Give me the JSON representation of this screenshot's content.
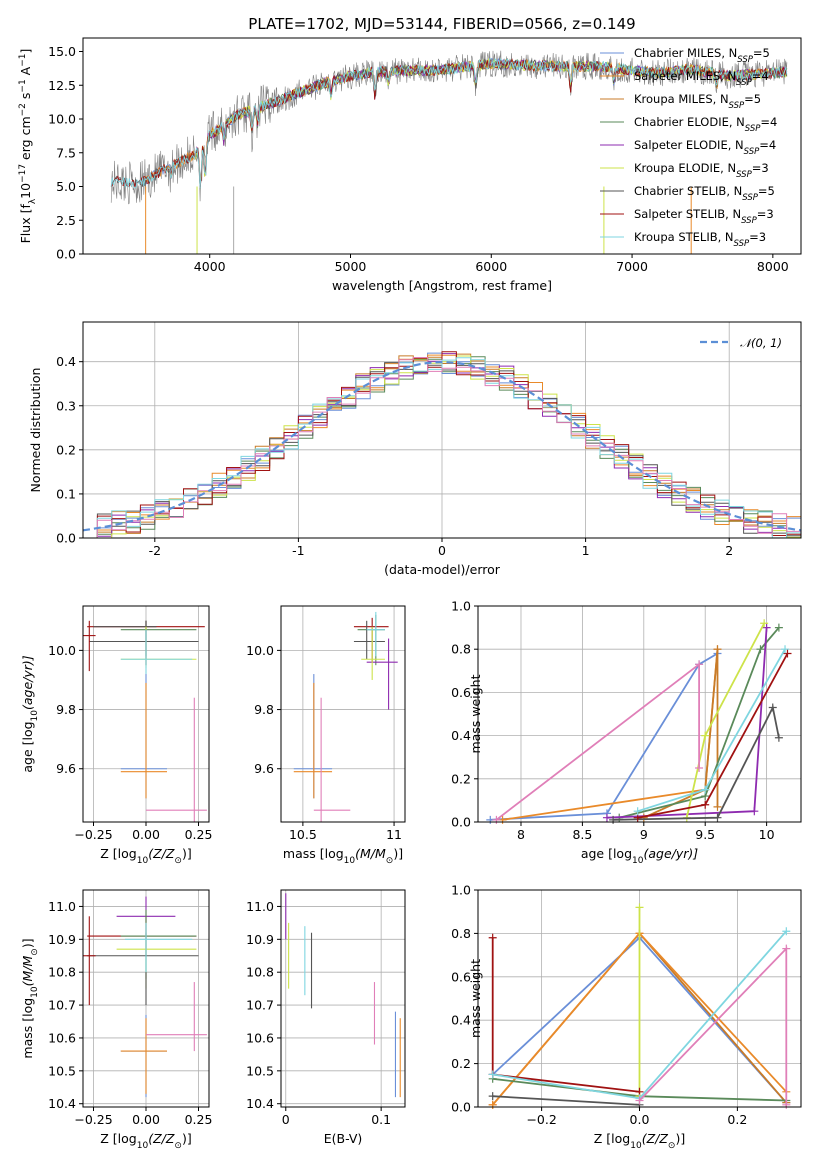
{
  "colors": {
    "chabrier_miles": "#6a8fd8",
    "salpeter_miles": "#e98a2a",
    "kroupa_miles": "#c87b28",
    "chabrier_elodie": "#5a8a5a",
    "salpeter_elodie": "#8e2bb0",
    "kroupa_elodie": "#cde34a",
    "chabrier_stelib": "#555555",
    "salpeter_stelib": "#a01212",
    "kroupa_stelib": "#7fd6e0",
    "pink": "#e07fb8",
    "data": "#808080",
    "normal": "#5b8fd6"
  },
  "chart_data": [
    {
      "id": "spectrum",
      "type": "line",
      "title": "PLATE=1702, MJD=53144, FIBERID=0566, z=0.149",
      "xlabel": "wavelength [Angstrom, rest frame]",
      "ylabel": "Flux [fλ10⁻¹⁷ erg cm⁻² s⁻¹ A⁻¹]",
      "xlim": [
        3100,
        8200
      ],
      "ylim": [
        0,
        16
      ],
      "xticks": [
        4000,
        5000,
        6000,
        7000,
        8000
      ],
      "yticks": [
        0.0,
        2.5,
        5.0,
        7.5,
        10.0,
        12.5,
        15.0
      ],
      "grid": false,
      "legend_position": "top-right",
      "legend": [
        "Chabrier MILES, N_SSP=5",
        "Salpeter MILES, N_SSP=4",
        "Kroupa MILES, N_SSP=5",
        "Chabrier ELODIE, N_SSP=4",
        "Salpeter ELODIE, N_SSP=4",
        "Kroupa ELODIE, N_SSP=3",
        "Chabrier STELIB, N_SSP=5",
        "Salpeter STELIB, N_SSP=3",
        "Kroupa STELIB, N_SSP=3"
      ],
      "legend_display": [
        {
          "name": "Chabrier MILES, N",
          "sub": "SSP",
          "tail": "=5"
        },
        {
          "name": "Salpeter MILES, N",
          "sub": "SSP",
          "tail": "=4"
        },
        {
          "name": "Kroupa MILES, N",
          "sub": "SSP",
          "tail": "=5"
        },
        {
          "name": "Chabrier ELODIE, N",
          "sub": "SSP",
          "tail": "=4"
        },
        {
          "name": "Salpeter ELODIE, N",
          "sub": "SSP",
          "tail": "=4"
        },
        {
          "name": "Kroupa ELODIE, N",
          "sub": "SSP",
          "tail": "=3"
        },
        {
          "name": "Chabrier STELIB, N",
          "sub": "SSP",
          "tail": "=5"
        },
        {
          "name": "Salpeter STELIB, N",
          "sub": "SSP",
          "tail": "=3"
        },
        {
          "name": "Kroupa STELIB, N",
          "sub": "SSP",
          "tail": "=3"
        }
      ],
      "continuum": {
        "x": [
          3300,
          3500,
          3700,
          3900,
          4000,
          4200,
          4500,
          4800,
          5000,
          5200,
          5400,
          5600,
          5800,
          6000,
          6200,
          6500,
          6800,
          7000,
          7200,
          7400,
          7700,
          8000,
          8100
        ],
        "y": [
          5.4,
          5.2,
          6.4,
          7.4,
          8.8,
          10.3,
          11.4,
          12.6,
          13.2,
          13.5,
          13.6,
          13.6,
          13.8,
          14.1,
          14.0,
          13.9,
          13.9,
          13.6,
          13.4,
          13.7,
          13.2,
          13.4,
          13.5
        ]
      }
    },
    {
      "id": "residuals",
      "type": "line",
      "xlabel": "(data-model)/error",
      "ylabel": "Normed distribution",
      "xlim": [
        -2.5,
        2.5
      ],
      "ylim": [
        0,
        0.49
      ],
      "xticks": [
        -2,
        -1,
        0,
        1,
        2
      ],
      "yticks": [
        0.0,
        0.1,
        0.2,
        0.3,
        0.4
      ],
      "grid": true,
      "legend_position": "top-right",
      "legend": [
        "N(0,1)"
      ],
      "legend_display": "𝒩(0, 1)"
    },
    {
      "id": "age_vs_Z",
      "type": "scatter",
      "xlabel": "Z [log10(Z/Z⊙)]",
      "xlabel_display": {
        "pre": "Z [log",
        "sub": "10",
        "post": "(Z/Z",
        "sun": "⊙",
        "end": ")]"
      },
      "ylabel": "age [log10(age/yr)]",
      "ylabel_display": {
        "pre": "age  [log",
        "sub": "10",
        "post": "(age/yr)]"
      },
      "xlim": [
        -0.3,
        0.3
      ],
      "ylim": [
        9.42,
        10.15
      ],
      "xticks": [
        -0.25,
        0.0,
        0.25
      ],
      "xtick_labels": [
        "−0.25",
        "0.00",
        "0.25"
      ],
      "yticks": [
        9.6,
        9.8,
        10.0
      ],
      "grid": true
    },
    {
      "id": "age_vs_mass",
      "type": "scatter",
      "xlabel": "mass [log10(M/M⊙)]",
      "xlabel_display": {
        "pre": "mass [log",
        "sub": "10",
        "post": "(M/M",
        "sun": "⊙",
        "end": ")]"
      },
      "xlim": [
        10.38,
        11.06
      ],
      "ylim": [
        9.42,
        10.15
      ],
      "xticks": [
        10.5,
        11.0
      ],
      "yticks": [
        9.6,
        9.8,
        10.0
      ],
      "grid": true
    },
    {
      "id": "massweight_vs_age",
      "type": "line",
      "xlabel": "age [log10(age/yr)]",
      "xlabel_display": {
        "pre": "age  [log",
        "sub": "10",
        "post": "(age/yr)]"
      },
      "ylabel": "mass weight",
      "xlim": [
        7.65,
        10.28
      ],
      "ylim": [
        0,
        1
      ],
      "xticks": [
        8.0,
        8.5,
        9.0,
        9.5,
        10.0
      ],
      "yticks": [
        0.0,
        0.2,
        0.4,
        0.6,
        0.8,
        1.0
      ],
      "grid": true,
      "series": [
        {
          "name": "Chabrier MILES",
          "x": [
            7.75,
            8.7,
            9.45,
            9.6
          ],
          "y": [
            0.01,
            0.04,
            0.73,
            0.78
          ]
        },
        {
          "name": "Salpeter MILES",
          "x": [
            7.85,
            9.5,
            9.6
          ],
          "y": [
            0.01,
            0.15,
            0.8
          ]
        },
        {
          "name": "Kroupa MILES",
          "x": [
            9.0,
            9.5,
            9.6,
            9.6
          ],
          "y": [
            0.02,
            0.15,
            0.8,
            0.07
          ]
        },
        {
          "name": "Chabrier ELODIE",
          "x": [
            8.8,
            9.5,
            9.95,
            10.1
          ],
          "y": [
            0.02,
            0.12,
            0.8,
            0.9
          ]
        },
        {
          "name": "Salpeter ELODIE",
          "x": [
            8.7,
            9.9,
            10.0
          ],
          "y": [
            0.02,
            0.05,
            0.9
          ]
        },
        {
          "name": "Kroupa ELODIE",
          "x": [
            9.35,
            9.5,
            9.98
          ],
          "y": [
            0.02,
            0.4,
            0.92
          ]
        },
        {
          "name": "Chabrier STELIB",
          "x": [
            8.75,
            9.6,
            10.05,
            10.1
          ],
          "y": [
            0.01,
            0.02,
            0.53,
            0.39
          ]
        },
        {
          "name": "Salpeter STELIB",
          "x": [
            8.95,
            9.5,
            10.17
          ],
          "y": [
            0.02,
            0.08,
            0.78
          ]
        },
        {
          "name": "Kroupa STELIB",
          "x": [
            8.95,
            9.5,
            10.15
          ],
          "y": [
            0.05,
            0.15,
            0.8
          ]
        },
        {
          "name": "pink",
          "x": [
            7.8,
            9.45,
            9.45
          ],
          "y": [
            0.01,
            0.73,
            0.25
          ]
        }
      ]
    },
    {
      "id": "mass_vs_Z",
      "type": "scatter",
      "xlabel": "Z [log10(Z/Z⊙)]",
      "xlabel_display": {
        "pre": "Z [log",
        "sub": "10",
        "post": "(Z/Z",
        "sun": "⊙",
        "end": ")]"
      },
      "ylabel": "mass [log10(M/M⊙)]",
      "ylabel_display": {
        "pre": "mass [log",
        "sub": "10",
        "post": "(M/M",
        "sun": "⊙",
        "end": ")]"
      },
      "xlim": [
        -0.3,
        0.3
      ],
      "ylim": [
        10.39,
        11.05
      ],
      "xticks": [
        -0.25,
        0.0,
        0.25
      ],
      "xtick_labels": [
        "−0.25",
        "0.00",
        "0.25"
      ],
      "yticks": [
        10.4,
        10.5,
        10.6,
        10.7,
        10.8,
        10.9,
        11.0
      ],
      "grid": true
    },
    {
      "id": "mass_vs_ebv",
      "type": "scatter",
      "xlabel": "E(B-V)",
      "xlim": [
        -0.005,
        0.125
      ],
      "ylim": [
        10.39,
        11.05
      ],
      "xticks": [
        0.0,
        0.1
      ],
      "yticks": [
        10.4,
        10.5,
        10.6,
        10.7,
        10.8,
        10.9,
        11.0
      ],
      "grid": true
    },
    {
      "id": "massweight_vs_Z",
      "type": "line",
      "xlabel": "Z [log10(Z/Z⊙)]",
      "xlabel_display": {
        "pre": "Z [log",
        "sub": "10",
        "post": "(Z/Z",
        "sun": "⊙",
        "end": ")]"
      },
      "ylabel": "mass weight",
      "xlim": [
        -0.33,
        0.33
      ],
      "ylim": [
        0,
        1
      ],
      "xticks": [
        -0.2,
        0.0,
        0.2
      ],
      "xtick_labels": [
        "−0.2",
        "0.0",
        "0.2"
      ],
      "yticks": [
        0.0,
        0.2,
        0.4,
        0.6,
        0.8,
        1.0
      ],
      "grid": true,
      "series": [
        {
          "name": "Chabrier MILES",
          "x": [
            -0.3,
            0.0,
            0.3
          ],
          "y": [
            0.15,
            0.78,
            0.02
          ]
        },
        {
          "name": "Kroupa MILES",
          "x": [
            -0.3,
            0.0,
            0.3
          ],
          "y": [
            0.01,
            0.8,
            0.02
          ]
        },
        {
          "name": "Salpeter MILES",
          "x": [
            -0.3,
            0.0,
            0.3
          ],
          "y": [
            0.01,
            0.8,
            0.07
          ]
        },
        {
          "name": "Chabrier ELODIE",
          "x": [
            -0.3,
            0.0,
            0.3
          ],
          "y": [
            0.13,
            0.05,
            0.03
          ]
        },
        {
          "name": "Kroupa ELODIE",
          "x": [
            0.0,
            0.0
          ],
          "y": [
            0.92,
            0.05
          ]
        },
        {
          "name": "Chabrier STELIB",
          "x": [
            -0.3,
            0.0
          ],
          "y": [
            0.05,
            0.01
          ]
        },
        {
          "name": "Salpeter STELIB",
          "x": [
            -0.3,
            -0.3,
            0.0
          ],
          "y": [
            0.78,
            0.15,
            0.07
          ]
        },
        {
          "name": "Kroupa STELIB",
          "x": [
            -0.3,
            0.0,
            0.3
          ],
          "y": [
            0.15,
            0.04,
            0.81
          ]
        },
        {
          "name": "pink",
          "x": [
            0.0,
            0.3,
            0.3
          ],
          "y": [
            0.03,
            0.73,
            0.01
          ]
        }
      ]
    }
  ]
}
